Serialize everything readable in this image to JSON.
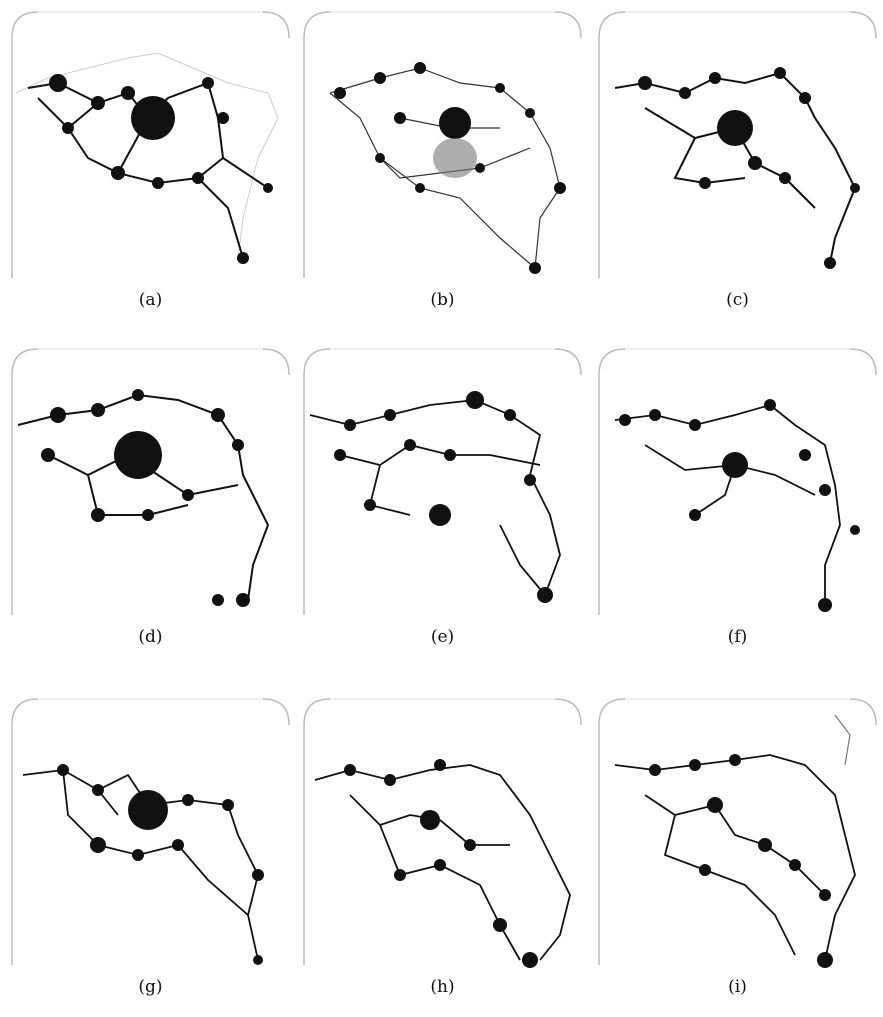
{
  "figure": {
    "panels": [
      {
        "label": "(a)"
      },
      {
        "label": "(b)"
      },
      {
        "label": "(c)"
      },
      {
        "label": "(d)"
      },
      {
        "label": "(e)"
      },
      {
        "label": "(f)"
      },
      {
        "label": "(g)"
      },
      {
        "label": "(h)"
      },
      {
        "label": "(i)"
      }
    ]
  }
}
